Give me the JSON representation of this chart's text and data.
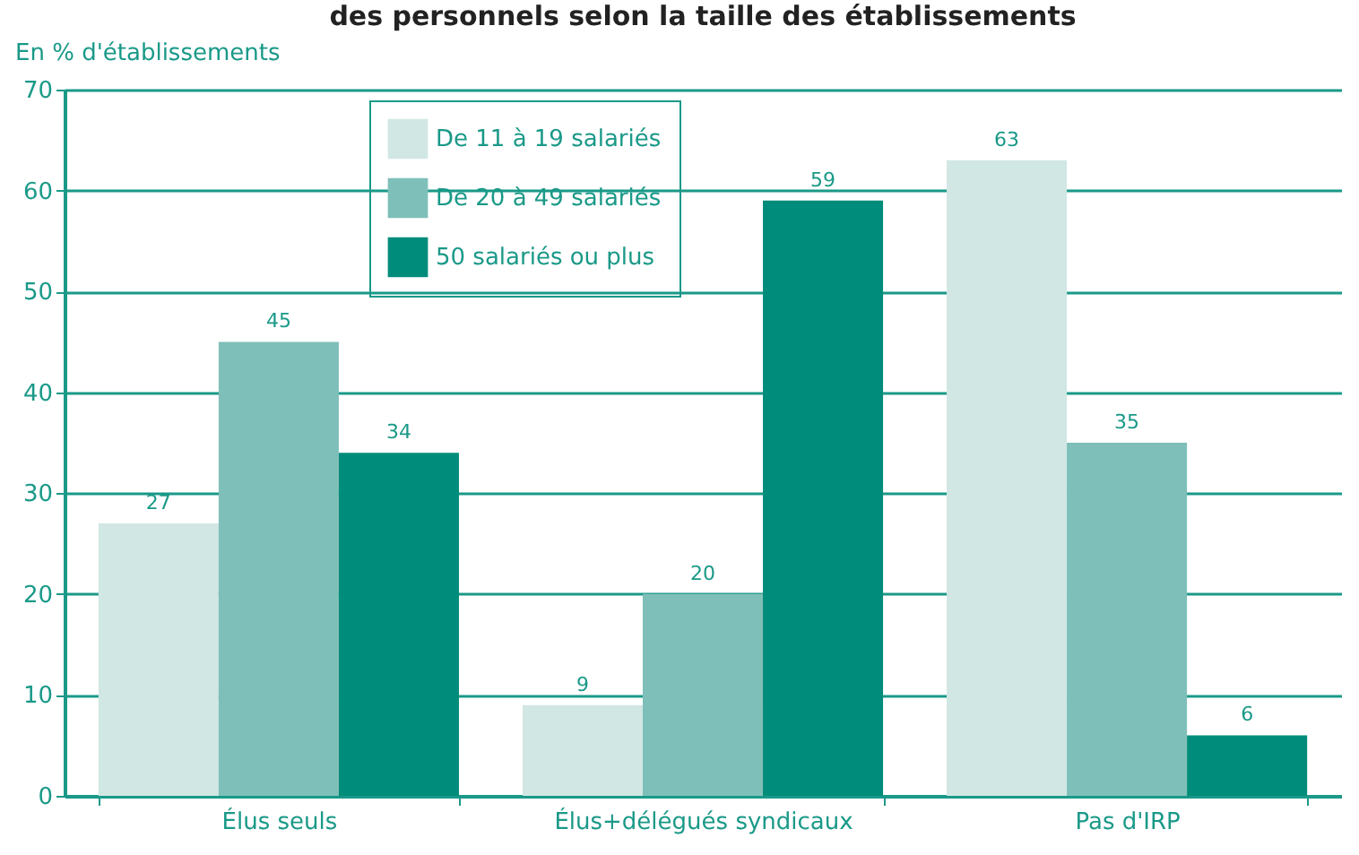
{
  "chart_data": {
    "type": "bar",
    "title": "des personnels selon la taille des établissements",
    "ylabel": "En % d'établissements",
    "categories": [
      "Élus seuls",
      "Élus+délégués syndicaux",
      "Pas d'IRP"
    ],
    "series": [
      {
        "name": "De 11 à 19 salariés",
        "color": "#d1e7e3",
        "values": [
          27,
          9,
          63
        ]
      },
      {
        "name": "De 20 à 49 salariés",
        "color": "#7fbfb9",
        "values": [
          45,
          20,
          35
        ]
      },
      {
        "name": "50 salariés ou plus",
        "color": "#008c7a",
        "values": [
          34,
          59,
          6
        ]
      }
    ],
    "ylim": [
      0,
      70
    ],
    "yticks": [
      0,
      10,
      20,
      30,
      40,
      50,
      60,
      70
    ],
    "grid": "y",
    "legend": "top left",
    "data_labels": true
  }
}
